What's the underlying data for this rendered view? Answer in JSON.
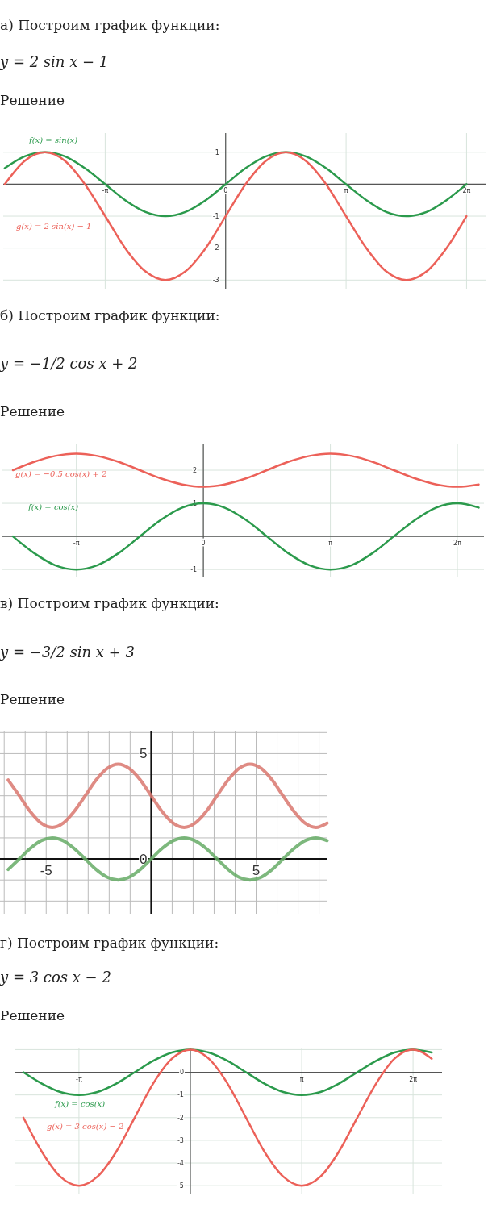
{
  "chart_data": [
    {
      "type": "line",
      "title": "а) Построим график функции:",
      "subtitle": "y = 2 sin x − 1",
      "annotations": [
        "Решение"
      ],
      "grid": true,
      "xlim": [
        -5.8,
        6.8
      ],
      "ylim": [
        -3.27,
        1.6
      ],
      "xticks": [
        {
          "value": -3.1416,
          "label": "-π"
        },
        0,
        {
          "value": 3.1416,
          "label": "π"
        },
        {
          "value": 6.2832,
          "label": "2π"
        }
      ],
      "yticks": [
        1,
        {
          "value": 0,
          "label": null
        },
        -1,
        -2,
        -3
      ],
      "x": [
        -5.76,
        -5.24,
        -4.71,
        -4.19,
        -3.67,
        -3.14,
        -2.62,
        -2.09,
        -1.57,
        -1.05,
        -0.52,
        0,
        0.52,
        1.05,
        1.57,
        2.09,
        2.62,
        3.14,
        3.67,
        4.19,
        4.71,
        5.24,
        5.76,
        6.28
      ],
      "series": [
        {
          "name": "f(x) = sin(x)",
          "color": "#2b9a4c",
          "values": [
            0.5,
            0.87,
            1,
            0.87,
            0.5,
            0,
            -0.5,
            -0.87,
            -1,
            -0.87,
            -0.5,
            0,
            0.5,
            0.87,
            1,
            0.87,
            0.5,
            0,
            -0.5,
            -0.87,
            -1,
            -0.87,
            -0.5,
            0
          ]
        },
        {
          "name": "g(x) = 2 sin(x) − 1",
          "color": "#ec6159",
          "values": [
            0,
            0.73,
            1,
            0.73,
            0,
            -1,
            -2,
            -2.73,
            -3,
            -2.73,
            -2,
            -1,
            0,
            0.73,
            1,
            0.73,
            0,
            -1,
            -2,
            -2.73,
            -3,
            -2.73,
            -2,
            -1
          ]
        }
      ]
    },
    {
      "type": "line",
      "title": "б) Построим график функции:",
      "subtitle": "y = −1/2 cos x + 2",
      "annotations": [
        "Решение"
      ],
      "grid": true,
      "xlim": [
        -4.97,
        6.94
      ],
      "ylim": [
        -1.24,
        2.78
      ],
      "xticks": [
        {
          "value": -3.1416,
          "label": "-π"
        },
        0,
        {
          "value": 3.1416,
          "label": "π"
        },
        {
          "value": 6.2832,
          "label": "2π"
        }
      ],
      "yticks": [
        2,
        1,
        {
          "value": 0,
          "label": null
        },
        -1
      ],
      "x": [
        -4.71,
        -4.19,
        -3.67,
        -3.14,
        -2.62,
        -2.09,
        -1.57,
        -1.05,
        -0.52,
        0,
        0.52,
        1.05,
        1.57,
        2.09,
        2.62,
        3.14,
        3.67,
        4.19,
        4.71,
        5.24,
        5.76,
        6.28,
        6.81
      ],
      "series": [
        {
          "name": "g(x) = −0.5 cos(x) + 2",
          "color": "#ec6159",
          "values": [
            2,
            2.25,
            2.43,
            2.5,
            2.43,
            2.25,
            2,
            1.75,
            1.57,
            1.5,
            1.57,
            1.75,
            2,
            2.25,
            2.43,
            2.5,
            2.43,
            2.25,
            2,
            1.75,
            1.57,
            1.5,
            1.57
          ]
        },
        {
          "name": "f(x) = cos(x)",
          "color": "#2b9a4c",
          "values": [
            0,
            -0.5,
            -0.87,
            -1,
            -0.87,
            -0.5,
            0,
            0.5,
            0.87,
            1,
            0.87,
            0.5,
            0,
            -0.5,
            -0.87,
            -1,
            -0.87,
            -0.5,
            0,
            0.5,
            0.87,
            1,
            0.87
          ]
        }
      ]
    },
    {
      "type": "line",
      "title": "в) Построим график функции:",
      "subtitle": "y = −3/2 sin x + 3",
      "annotations": [
        "Решение"
      ],
      "grid": true,
      "xlim": [
        -7.2,
        8.4
      ],
      "ylim": [
        -2.6,
        6.05
      ],
      "xticks": [
        {
          "value": -7,
          "label": null
        },
        {
          "value": -6,
          "label": null
        },
        -5,
        {
          "value": -4,
          "label": null
        },
        {
          "value": -3,
          "label": null
        },
        {
          "value": -2,
          "label": null
        },
        {
          "value": -1,
          "label": null
        },
        {
          "value": 0,
          "label": null
        },
        {
          "value": 1,
          "label": null
        },
        {
          "value": 2,
          "label": null
        },
        {
          "value": 3,
          "label": null
        },
        {
          "value": 4,
          "label": null
        },
        5,
        {
          "value": 6,
          "label": null
        },
        {
          "value": 7,
          "label": null
        },
        {
          "value": 8,
          "label": null
        }
      ],
      "yticks": [
        {
          "value": -2,
          "label": null
        },
        {
          "value": -1,
          "label": null
        },
        0,
        {
          "value": 1,
          "label": null
        },
        {
          "value": 2,
          "label": null
        },
        {
          "value": 3,
          "label": null
        },
        {
          "value": 4,
          "label": null
        },
        5,
        {
          "value": 6,
          "label": null
        }
      ],
      "x": [
        -6.81,
        -6.28,
        -5.76,
        -5.24,
        -4.71,
        -4.19,
        -3.67,
        -3.14,
        -2.62,
        -2.09,
        -1.57,
        -1.05,
        -0.52,
        0,
        0.52,
        1.05,
        1.57,
        2.09,
        2.62,
        3.14,
        3.67,
        4.19,
        4.71,
        5.24,
        5.76,
        6.28,
        6.81,
        7.33,
        7.85,
        8.38
      ],
      "series": [
        {
          "color": "#d9776f",
          "values": [
            3.75,
            3,
            2.25,
            1.7,
            1.5,
            1.7,
            2.25,
            3,
            3.75,
            4.3,
            4.5,
            4.3,
            3.75,
            3,
            2.25,
            1.7,
            1.5,
            1.7,
            2.25,
            3,
            3.75,
            4.3,
            4.5,
            4.3,
            3.75,
            3,
            2.25,
            1.7,
            1.5,
            1.7
          ]
        },
        {
          "color": "#66ac66",
          "values": [
            -0.5,
            0,
            0.5,
            0.87,
            1,
            0.87,
            0.5,
            0,
            -0.5,
            -0.87,
            -1,
            -0.87,
            -0.5,
            0,
            0.5,
            0.87,
            1,
            0.87,
            0.5,
            0,
            -0.5,
            -0.87,
            -1,
            -0.87,
            -0.5,
            0,
            0.5,
            0.87,
            1,
            0.87
          ]
        }
      ]
    },
    {
      "type": "line",
      "title": "г) Построим график функции:",
      "subtitle": "y = 3 cos x − 2",
      "annotations": [
        "Решение"
      ],
      "grid": true,
      "xlim": [
        -4.96,
        7.1
      ],
      "ylim": [
        -5.35,
        1.05
      ],
      "xticks": [
        {
          "value": -3.1416,
          "label": "-π"
        },
        {
          "value": 0,
          "label": null
        },
        {
          "value": 3.1416,
          "label": "π"
        },
        {
          "value": 6.2832,
          "label": "2π"
        }
      ],
      "yticks": [
        {
          "value": 1,
          "label": null
        },
        0,
        -1,
        -2,
        -3,
        -4,
        -5
      ],
      "x": [
        -4.71,
        -4.19,
        -3.67,
        -3.14,
        -2.62,
        -2.09,
        -1.57,
        -1.05,
        -0.52,
        0,
        0.52,
        1.05,
        1.57,
        2.09,
        2.62,
        3.14,
        3.67,
        4.19,
        4.71,
        5.24,
        5.76,
        6.28,
        6.81
      ],
      "series": [
        {
          "name": "f(x) = cos(x)",
          "color": "#2b9a4c",
          "values": [
            0,
            -0.5,
            -0.87,
            -1,
            -0.87,
            -0.5,
            0,
            0.5,
            0.87,
            1,
            0.87,
            0.5,
            0,
            -0.5,
            -0.87,
            -1,
            -0.87,
            -0.5,
            0,
            0.5,
            0.87,
            1,
            0.87
          ]
        },
        {
          "name": "g(x) = 3 cos(x) − 2",
          "color": "#ec6159",
          "values": [
            -2,
            -3.5,
            -4.6,
            -5,
            -4.6,
            -3.5,
            -2,
            -0.5,
            0.6,
            1,
            0.6,
            -0.5,
            -2,
            -3.5,
            -4.6,
            -5,
            -4.6,
            -3.5,
            -2,
            -0.5,
            0.6,
            1,
            0.6
          ]
        }
      ]
    }
  ]
}
